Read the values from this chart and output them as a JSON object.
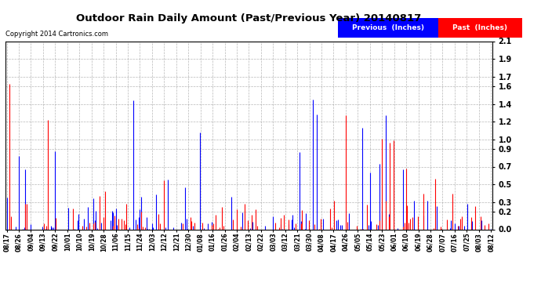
{
  "title": "Outdoor Rain Daily Amount (Past/Previous Year) 20140817",
  "copyright_text": "Copyright 2014 Cartronics.com",
  "legend_previous": "Previous  (Inches)",
  "legend_past": "Past  (Inches)",
  "previous_color": "#0000ff",
  "past_color": "#ff0000",
  "background_color": "#ffffff",
  "plot_bg_color": "#ffffff",
  "grid_color": "#888888",
  "ylim": [
    0.0,
    2.1
  ],
  "yticks": [
    0.0,
    0.2,
    0.3,
    0.5,
    0.7,
    0.9,
    1.0,
    1.2,
    1.4,
    1.6,
    1.7,
    1.9,
    2.1
  ],
  "x_tick_labels": [
    "08/17",
    "08/26",
    "09/04",
    "09/13",
    "09/22",
    "10/01",
    "10/10",
    "10/19",
    "10/28",
    "11/06",
    "11/15",
    "11/24",
    "12/03",
    "12/12",
    "12/21",
    "12/30",
    "01/08",
    "01/16",
    "01/26",
    "02/04",
    "02/13",
    "02/22",
    "03/03",
    "03/12",
    "03/21",
    "03/30",
    "04/08",
    "04/17",
    "04/26",
    "05/05",
    "05/14",
    "05/23",
    "06/01",
    "06/10",
    "06/19",
    "06/28",
    "07/07",
    "07/16",
    "07/25",
    "08/03",
    "08/12"
  ],
  "figsize": [
    6.9,
    3.75
  ],
  "dpi": 100
}
